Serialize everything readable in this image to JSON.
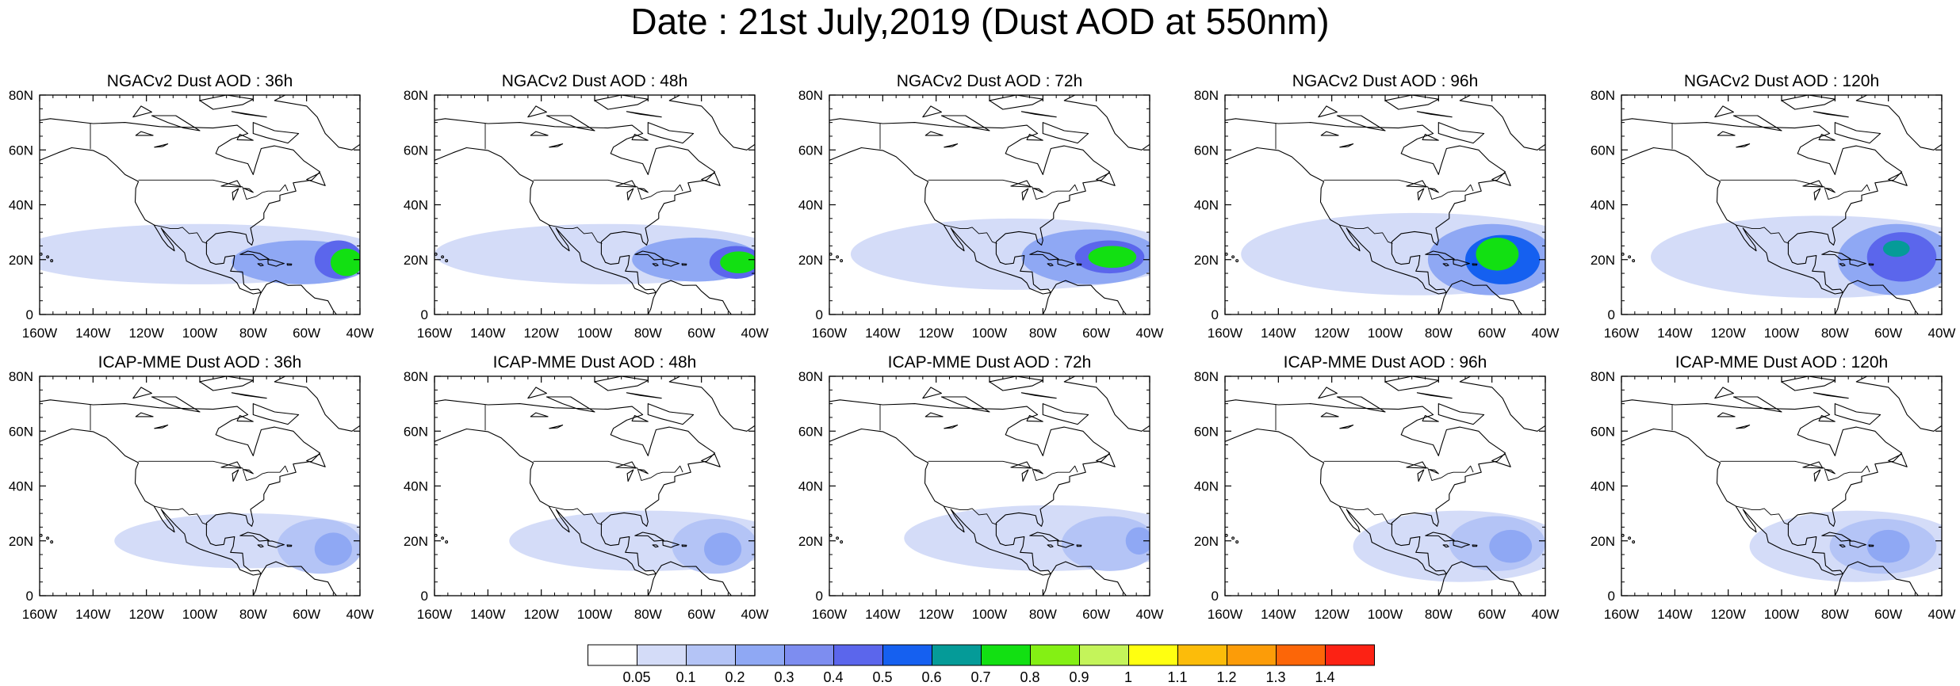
{
  "title": "Date : 21st July,2019 (Dust AOD at 550nm)",
  "axes": {
    "lon_ticks": [
      "160W",
      "140W",
      "120W",
      "100W",
      "80W",
      "60W",
      "40W"
    ],
    "lat_ticks": [
      "80N",
      "60N",
      "40N",
      "20N",
      "0"
    ],
    "lon_range": [
      -160,
      -40
    ],
    "lat_range": [
      0,
      80
    ]
  },
  "panels": [
    {
      "title": "NGACv2 Dust AOD : 36h",
      "model": "NGACv2",
      "lead": "36h",
      "plumes": [
        {
          "lon": -100,
          "lat": 22,
          "rlon": 70,
          "rlat": 11,
          "level": 1
        },
        {
          "lon": -62,
          "lat": 19,
          "rlon": 26,
          "rlat": 8,
          "level": 3
        },
        {
          "lon": -48,
          "lat": 20,
          "rlon": 9,
          "rlat": 7,
          "level": 5
        },
        {
          "lon": -45,
          "lat": 19,
          "rlon": 6,
          "rlat": 5,
          "level": 8
        }
      ]
    },
    {
      "title": "NGACv2 Dust AOD : 48h",
      "model": "NGACv2",
      "lead": "48h",
      "plumes": [
        {
          "lon": -95,
          "lat": 22,
          "rlon": 65,
          "rlat": 11,
          "level": 1
        },
        {
          "lon": -62,
          "lat": 20,
          "rlon": 24,
          "rlat": 8,
          "level": 3
        },
        {
          "lon": -47,
          "lat": 19,
          "rlon": 10,
          "rlat": 6,
          "level": 5
        },
        {
          "lon": -46,
          "lat": 19,
          "rlon": 7,
          "rlat": 4,
          "level": 8
        }
      ]
    },
    {
      "title": "NGACv2 Dust AOD : 72h",
      "model": "NGACv2",
      "lead": "72h",
      "plumes": [
        {
          "lon": -90,
          "lat": 22,
          "rlon": 62,
          "rlat": 13,
          "level": 1
        },
        {
          "lon": -62,
          "lat": 21,
          "rlon": 26,
          "rlat": 10,
          "level": 3
        },
        {
          "lon": -55,
          "lat": 21,
          "rlon": 13,
          "rlat": 6,
          "level": 5
        },
        {
          "lon": -54,
          "lat": 21,
          "rlon": 9,
          "rlat": 4,
          "level": 8
        }
      ]
    },
    {
      "title": "NGACv2 Dust AOD : 96h",
      "model": "NGACv2",
      "lead": "96h",
      "plumes": [
        {
          "lon": -88,
          "lat": 22,
          "rlon": 66,
          "rlat": 15,
          "level": 1
        },
        {
          "lon": -60,
          "lat": 20,
          "rlon": 24,
          "rlat": 13,
          "level": 3
        },
        {
          "lon": -56,
          "lat": 20,
          "rlon": 14,
          "rlat": 9,
          "level": 6
        },
        {
          "lon": -58,
          "lat": 22,
          "rlon": 8,
          "rlat": 6,
          "level": 8
        }
      ]
    },
    {
      "title": "NGACv2 Dust AOD : 120h",
      "model": "NGACv2",
      "lead": "120h",
      "plumes": [
        {
          "lon": -85,
          "lat": 21,
          "rlon": 64,
          "rlat": 15,
          "level": 1
        },
        {
          "lon": -57,
          "lat": 20,
          "rlon": 22,
          "rlat": 13,
          "level": 3
        },
        {
          "lon": -55,
          "lat": 21,
          "rlon": 13,
          "rlat": 9,
          "level": 5
        },
        {
          "lon": -57,
          "lat": 24,
          "rlon": 5,
          "rlat": 3,
          "level": 7
        }
      ]
    },
    {
      "title": "ICAP-MME Dust AOD : 36h",
      "model": "ICAP-MME",
      "lead": "36h",
      "plumes": [
        {
          "lon": -82,
          "lat": 20,
          "rlon": 50,
          "rlat": 10,
          "level": 1
        },
        {
          "lon": -55,
          "lat": 18,
          "rlon": 16,
          "rlat": 10,
          "level": 2
        },
        {
          "lon": -50,
          "lat": 17,
          "rlon": 7,
          "rlat": 6,
          "level": 3
        }
      ]
    },
    {
      "title": "ICAP-MME Dust AOD : 48h",
      "model": "ICAP-MME",
      "lead": "48h",
      "plumes": [
        {
          "lon": -80,
          "lat": 20,
          "rlon": 52,
          "rlat": 11,
          "level": 1
        },
        {
          "lon": -55,
          "lat": 18,
          "rlon": 16,
          "rlat": 10,
          "level": 2
        },
        {
          "lon": -52,
          "lat": 17,
          "rlon": 7,
          "rlat": 6,
          "level": 3
        }
      ]
    },
    {
      "title": "ICAP-MME Dust AOD : 72h",
      "model": "ICAP-MME",
      "lead": "72h",
      "plumes": [
        {
          "lon": -78,
          "lat": 21,
          "rlon": 54,
          "rlat": 12,
          "level": 1
        },
        {
          "lon": -55,
          "lat": 19,
          "rlon": 18,
          "rlat": 10,
          "level": 2
        },
        {
          "lon": -44,
          "lat": 20,
          "rlon": 5,
          "rlat": 5,
          "level": 3
        }
      ]
    },
    {
      "title": "ICAP-MME Dust AOD : 96h",
      "model": "ICAP-MME",
      "lead": "96h",
      "plumes": [
        {
          "lon": -72,
          "lat": 18,
          "rlon": 40,
          "rlat": 13,
          "level": 1
        },
        {
          "lon": -58,
          "lat": 19,
          "rlon": 18,
          "rlat": 10,
          "level": 2
        },
        {
          "lon": -53,
          "lat": 18,
          "rlon": 8,
          "rlat": 6,
          "level": 3
        }
      ]
    },
    {
      "title": "ICAP-MME Dust AOD : 120h",
      "model": "ICAP-MME",
      "lead": "120h",
      "plumes": [
        {
          "lon": -72,
          "lat": 18,
          "rlon": 40,
          "rlat": 13,
          "level": 1
        },
        {
          "lon": -62,
          "lat": 18,
          "rlon": 20,
          "rlat": 10,
          "level": 2
        },
        {
          "lon": -60,
          "lat": 18,
          "rlon": 8,
          "rlat": 6,
          "level": 3
        }
      ]
    }
  ],
  "colorbar": {
    "labels": [
      "0.05",
      "0.1",
      "0.2",
      "0.3",
      "0.4",
      "0.5",
      "0.6",
      "0.7",
      "0.8",
      "0.9",
      "1",
      "1.1",
      "1.2",
      "1.3",
      "1.4"
    ],
    "colors": [
      "#ffffff",
      "#d4dcf8",
      "#b4c4f6",
      "#8fa8f4",
      "#7d8df0",
      "#5b66ec",
      "#1560f0",
      "#059b98",
      "#12e012",
      "#84f014",
      "#c4f45a",
      "#ffff10",
      "#fcbc0a",
      "#fc9c08",
      "#fc6608",
      "#fc2214"
    ]
  }
}
